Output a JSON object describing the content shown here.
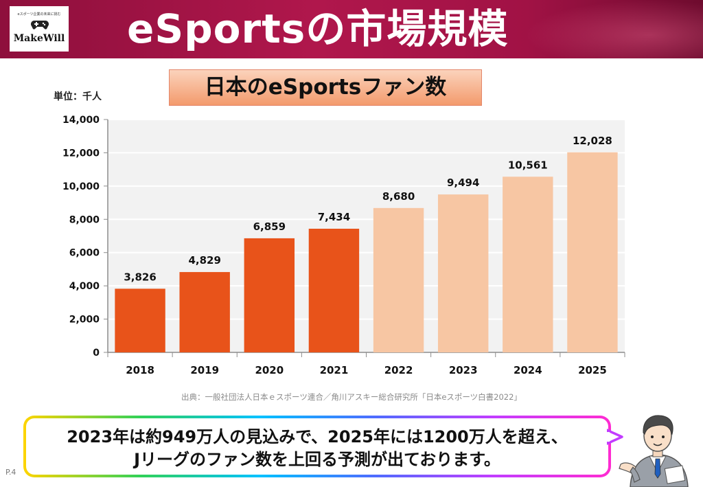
{
  "header": {
    "title": "eSportsの市場規模",
    "logo_text": "MakeWill",
    "logo_tagline": "eスポーツ企業の未来に挑む"
  },
  "chart_box_title": "日本のeSportsファン数",
  "unit_label": "単位：千人",
  "source": "出典：一般社団法人日本ｅスポーツ連合／角川アスキー総合研究所「日本eスポーツ白書2022」",
  "callout": {
    "line1": "2023年は約949万人の見込みで、2025年には1200万人を超え、",
    "line2": "Jリーグのファン数を上回る予測が出ております。"
  },
  "page_number": "P.4",
  "colors": {
    "actual_bar": "#e8531a",
    "forecast_bar": "#f7c6a3",
    "header_bg": "#a51246"
  },
  "chart_data": {
    "type": "bar",
    "title": "日本のeSportsファン数",
    "ylabel": "単位：千人",
    "xlabel": "",
    "categories": [
      "2018",
      "2019",
      "2020",
      "2021",
      "2022",
      "2023",
      "2024",
      "2025"
    ],
    "values": [
      3826,
      4829,
      6859,
      7434,
      8680,
      9494,
      10561,
      12028
    ],
    "value_labels": [
      "3,826",
      "4,829",
      "6,859",
      "7,434",
      "8,680",
      "9,494",
      "10,561",
      "12,028"
    ],
    "forecast_from_index": 4,
    "ylim": [
      0,
      14000
    ],
    "y_ticks": [
      0,
      2000,
      4000,
      6000,
      8000,
      10000,
      12000,
      14000
    ],
    "y_tick_labels": [
      "0",
      "2,000",
      "4,000",
      "6,000",
      "8,000",
      "10,000",
      "12,000",
      "14,000"
    ],
    "grid": true,
    "legend": "none"
  }
}
